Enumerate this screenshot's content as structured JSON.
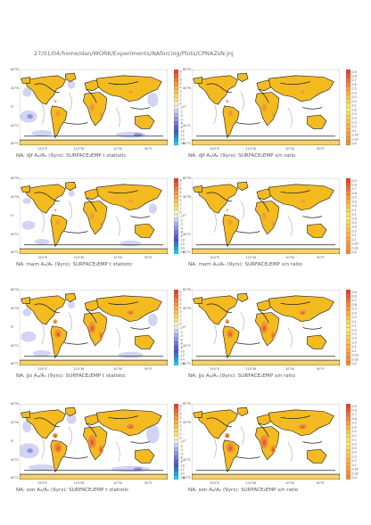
{
  "header": "27/01/04/home/dan/WORK/Experiments/NAforcing/Plots/CPNAZsN.jnj",
  "lat_labels": [
    "80°N",
    "40°N",
    "0°",
    "40°S",
    "80°S"
  ],
  "lon_labels": [
    "150°E",
    "110°W",
    "10°W",
    "90°E"
  ],
  "t_colorbar": {
    "ticks": [
      "8",
      "7",
      "6",
      "5",
      "4",
      "3",
      "2",
      "1",
      "0",
      "-1",
      "-2",
      "-3",
      "-4",
      "-6",
      "-8",
      "-10",
      "-12",
      "-14",
      "-16"
    ]
  },
  "sn_colorbar": {
    "ticks": [
      "0.9",
      "0.8",
      "0.7",
      "0.6",
      "0.5",
      "0.4",
      "0.3",
      "0.2",
      "0.1",
      "0.0",
      "0.5",
      "0.4",
      "0.3",
      "0.2",
      "0.1",
      "0.05",
      "0.02",
      "0.0"
    ]
  },
  "colors": {
    "ocean": "#ffffff",
    "land_yellow": "#f4bb20",
    "land_light": "#f6d16a",
    "orange": "#ee8a3c",
    "dark_orange": "#d85a2a",
    "blue_light": "#c9cdf0",
    "blue_mid": "#8f95dc",
    "coast": "#111111"
  },
  "panels": [
    {
      "caption": "NA: djf Aₐ/Aₙ (9yrs): SURFACE₂EMP t statistic",
      "type": "t",
      "blue": 0.4,
      "orange": 0.1
    },
    {
      "caption": "NA: djf Aₐ/Aₙ (9yrs): SURFACE₂EMP s/n ratio",
      "type": "sn",
      "blue": 0.0,
      "orange": 0.1
    },
    {
      "caption": "NA: mam Aₐ/Aₙ (9yrs): SURFACE₂EMP t statistic",
      "type": "t",
      "blue": 0.2,
      "orange": 0.05
    },
    {
      "caption": "NA: mam Aₐ/Aₙ (9yrs): SURFACE₂EMP s/n ratio",
      "type": "sn",
      "blue": 0.0,
      "orange": 0.05
    },
    {
      "caption": "NA: jjo Aₐ/Aₙ (9yrs): SURFACE₂EMP t statistic",
      "type": "t",
      "blue": 0.3,
      "orange": 0.3
    },
    {
      "caption": "NA: jjo Aₐ/Aₙ (9yrs): SURFACE₂EMP s/n ratio",
      "type": "sn",
      "blue": 0.0,
      "orange": 0.3
    },
    {
      "caption": "NA: son Aₐ/Aₙ (9yrs): SURFACE₂EMP t statistic",
      "type": "t",
      "blue": 0.6,
      "orange": 0.4
    },
    {
      "caption": "NA: son Aₐ/Aₙ (9yrs): SURFACE₂EMP s/n ratio",
      "type": "sn",
      "blue": 0.0,
      "orange": 0.4
    }
  ]
}
